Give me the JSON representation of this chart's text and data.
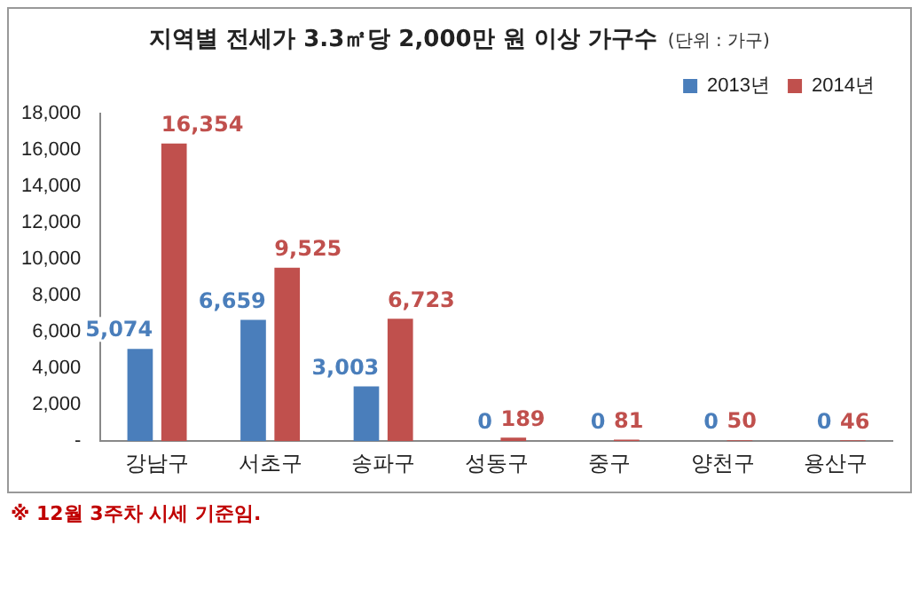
{
  "chart_data": {
    "type": "bar",
    "title": "지역별 전세가 3.3㎡당 2,000만 원 이상 가구수",
    "subtitle": "(단위 : 가구)",
    "categories": [
      "강남구",
      "서초구",
      "송파구",
      "성동구",
      "중구",
      "양천구",
      "용산구"
    ],
    "series": [
      {
        "name": "2013년",
        "color": "#4a7ebb",
        "values": [
          5074,
          6659,
          3003,
          0,
          0,
          0,
          0
        ],
        "value_labels": [
          "5,074",
          "6,659",
          "3,003",
          "0",
          "0",
          "0",
          "0"
        ]
      },
      {
        "name": "2014년",
        "color": "#c0504d",
        "values": [
          16354,
          9525,
          6723,
          189,
          81,
          50,
          46
        ],
        "value_labels": [
          "16,354",
          "9,525",
          "6,723",
          "189",
          "81",
          "50",
          "46"
        ]
      }
    ],
    "ylim": [
      0,
      18000
    ],
    "yticks": [
      {
        "value": 0,
        "label": "-"
      },
      {
        "value": 2000,
        "label": "2,000"
      },
      {
        "value": 4000,
        "label": "4,000"
      },
      {
        "value": 6000,
        "label": "6,000"
      },
      {
        "value": 8000,
        "label": "8,000"
      },
      {
        "value": 10000,
        "label": "10,000"
      },
      {
        "value": 12000,
        "label": "12,000"
      },
      {
        "value": 14000,
        "label": "14,000"
      },
      {
        "value": 16000,
        "label": "16,000"
      },
      {
        "value": 18000,
        "label": "18,000"
      }
    ],
    "grid": false,
    "legend": "top right",
    "annotations": [
      "※ 12월 3주차 시세 기준임."
    ]
  }
}
